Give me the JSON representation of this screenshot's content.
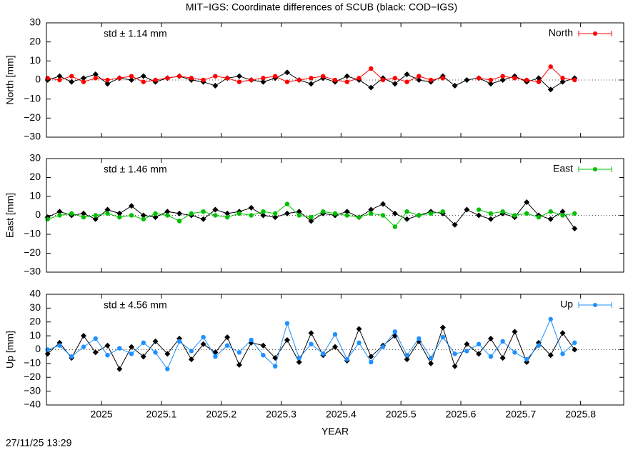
{
  "title": "MIT−IGS: Coordinate differences of SCUB (black: COD−IGS)",
  "timestamp": "27/11/25 13:29",
  "chart_data": [
    {
      "type": "line",
      "ylabel": "North [mm]",
      "annotation": {
        "text": "std ± 1.14 mm",
        "color": "#ff0000"
      },
      "legend": "top right",
      "xlim": [
        2024.908,
        2025.872
      ],
      "xticks": [
        2025,
        2025.1,
        2025.2,
        2025.3,
        2025.4,
        2025.5,
        2025.6,
        2025.7,
        2025.8
      ],
      "show_xtick_labels": false,
      "ylim": [
        -30,
        30
      ],
      "yticks": [
        {
          "value": -30,
          "label": "−30"
        },
        {
          "value": -20,
          "label": "−20"
        },
        {
          "value": -10,
          "label": "−10"
        },
        0,
        10,
        20,
        30
      ],
      "x": [
        2024.91,
        2024.93,
        2024.95,
        2024.97,
        2024.99,
        2025.01,
        2025.03,
        2025.05,
        2025.07,
        2025.09,
        2025.11,
        2025.13,
        2025.15,
        2025.17,
        2025.19,
        2025.21,
        2025.23,
        2025.25,
        2025.27,
        2025.29,
        2025.31,
        2025.33,
        2025.35,
        2025.37,
        2025.39,
        2025.41,
        2025.43,
        2025.45,
        2025.47,
        2025.49,
        2025.51,
        2025.53,
        2025.55,
        2025.57,
        2025.59,
        2025.61,
        2025.63,
        2025.65,
        2025.67,
        2025.69,
        2025.71,
        2025.73,
        2025.75,
        2025.77,
        2025.79
      ],
      "series": [
        {
          "color": "#000000",
          "values": [
            0,
            2,
            -1,
            1,
            3,
            -2,
            1,
            0,
            2,
            -1,
            1,
            2,
            0,
            -1,
            -3,
            1,
            2,
            0,
            -1,
            1,
            4,
            0,
            -2,
            1,
            -1,
            2,
            0,
            -4,
            1,
            -2,
            3,
            0,
            -1,
            2,
            -3,
            0,
            1,
            -2,
            0,
            2,
            -1,
            1,
            -5,
            -1,
            1
          ]
        },
        {
          "name": "North",
          "color": "#ff0000",
          "values": [
            1,
            0,
            2,
            -1,
            1,
            0,
            1,
            2,
            -1,
            0,
            1,
            2,
            1,
            0,
            2,
            1,
            -1,
            0,
            1,
            2,
            -1,
            0,
            1,
            2,
            0,
            -1,
            1,
            6,
            0,
            1,
            -1,
            2,
            0,
            1,
            null,
            null,
            1,
            0,
            2,
            1,
            0,
            -1,
            7,
            1,
            0
          ]
        }
      ]
    },
    {
      "type": "line",
      "ylabel": "East [mm]",
      "annotation": {
        "text": "std ± 1.46 mm",
        "color": "#00c000"
      },
      "legend": "top right",
      "xlim": [
        2024.908,
        2025.872
      ],
      "xticks": [
        2025,
        2025.1,
        2025.2,
        2025.3,
        2025.4,
        2025.5,
        2025.6,
        2025.7,
        2025.8
      ],
      "show_xtick_labels": false,
      "ylim": [
        -30,
        30
      ],
      "yticks": [
        {
          "value": -30,
          "label": "−30"
        },
        {
          "value": -20,
          "label": "−20"
        },
        {
          "value": -10,
          "label": "−10"
        },
        0,
        10,
        20,
        30
      ],
      "x": [
        2024.91,
        2024.93,
        2024.95,
        2024.97,
        2024.99,
        2025.01,
        2025.03,
        2025.05,
        2025.07,
        2025.09,
        2025.11,
        2025.13,
        2025.15,
        2025.17,
        2025.19,
        2025.21,
        2025.23,
        2025.25,
        2025.27,
        2025.29,
        2025.31,
        2025.33,
        2025.35,
        2025.37,
        2025.39,
        2025.41,
        2025.43,
        2025.45,
        2025.47,
        2025.49,
        2025.51,
        2025.53,
        2025.55,
        2025.57,
        2025.59,
        2025.61,
        2025.63,
        2025.65,
        2025.67,
        2025.69,
        2025.71,
        2025.73,
        2025.75,
        2025.77,
        2025.79
      ],
      "series": [
        {
          "color": "#000000",
          "values": [
            -1,
            2,
            0,
            1,
            -2,
            3,
            1,
            5,
            0,
            -1,
            2,
            1,
            0,
            -2,
            3,
            1,
            2,
            4,
            0,
            -1,
            1,
            2,
            -3,
            1,
            0,
            2,
            -1,
            3,
            6,
            1,
            -2,
            0,
            2,
            1,
            -5,
            3,
            0,
            -2,
            1,
            -1,
            7,
            0,
            -2,
            2,
            -7
          ]
        },
        {
          "name": "East",
          "color": "#00c000",
          "values": [
            -2,
            0,
            1,
            -1,
            0,
            1,
            -1,
            0,
            -2,
            1,
            0,
            -3,
            1,
            2,
            0,
            -1,
            1,
            0,
            2,
            1,
            6,
            0,
            -1,
            2,
            1,
            0,
            -1,
            1,
            0,
            -6,
            2,
            0,
            1,
            2,
            null,
            null,
            3,
            1,
            2,
            0,
            1,
            -1,
            2,
            0,
            1
          ]
        }
      ]
    },
    {
      "type": "line",
      "ylabel": "Up [mm]",
      "xlabel": "YEAR",
      "annotation": {
        "text": "std ± 4.56 mm",
        "color": "#1e90ff"
      },
      "legend": "top right",
      "xlim": [
        2024.908,
        2025.872
      ],
      "xticks": [
        2025,
        2025.1,
        2025.2,
        2025.3,
        2025.4,
        2025.5,
        2025.6,
        2025.7,
        2025.8
      ],
      "show_xtick_labels": true,
      "ylim": [
        -40,
        40
      ],
      "yticks": [
        {
          "value": -40,
          "label": "−40"
        },
        {
          "value": -30,
          "label": "−30"
        },
        {
          "value": -20,
          "label": "−20"
        },
        {
          "value": -10,
          "label": "−10"
        },
        0,
        10,
        20,
        30,
        40
      ],
      "x": [
        2024.91,
        2024.93,
        2024.95,
        2024.97,
        2024.99,
        2025.01,
        2025.03,
        2025.05,
        2025.07,
        2025.09,
        2025.11,
        2025.13,
        2025.15,
        2025.17,
        2025.19,
        2025.21,
        2025.23,
        2025.25,
        2025.27,
        2025.29,
        2025.31,
        2025.33,
        2025.35,
        2025.37,
        2025.39,
        2025.41,
        2025.43,
        2025.45,
        2025.47,
        2025.49,
        2025.51,
        2025.53,
        2025.55,
        2025.57,
        2025.59,
        2025.61,
        2025.63,
        2025.65,
        2025.67,
        2025.69,
        2025.71,
        2025.73,
        2025.75,
        2025.77,
        2025.79
      ],
      "series": [
        {
          "color": "#000000",
          "values": [
            -3,
            5,
            -6,
            10,
            -2,
            3,
            -14,
            2,
            -5,
            6,
            -3,
            8,
            -7,
            4,
            -2,
            9,
            -11,
            5,
            3,
            -6,
            7,
            -9,
            12,
            -4,
            2,
            -8,
            15,
            -5,
            3,
            10,
            -7,
            6,
            -10,
            16,
            -12,
            4,
            -3,
            8,
            -6,
            13,
            -9,
            5,
            -4,
            12,
            0
          ]
        },
        {
          "name": "Up",
          "color": "#1e90ff",
          "values": [
            0,
            3,
            -5,
            2,
            8,
            -4,
            1,
            -3,
            5,
            -2,
            -14,
            6,
            -1,
            9,
            -5,
            3,
            -2,
            7,
            -4,
            -12,
            19,
            -6,
            4,
            -3,
            11,
            -7,
            5,
            -9,
            2,
            13,
            -4,
            8,
            -6,
            9,
            -3,
            -1,
            4,
            -5,
            6,
            -2,
            -7,
            3,
            22,
            -3,
            5
          ]
        }
      ]
    }
  ]
}
